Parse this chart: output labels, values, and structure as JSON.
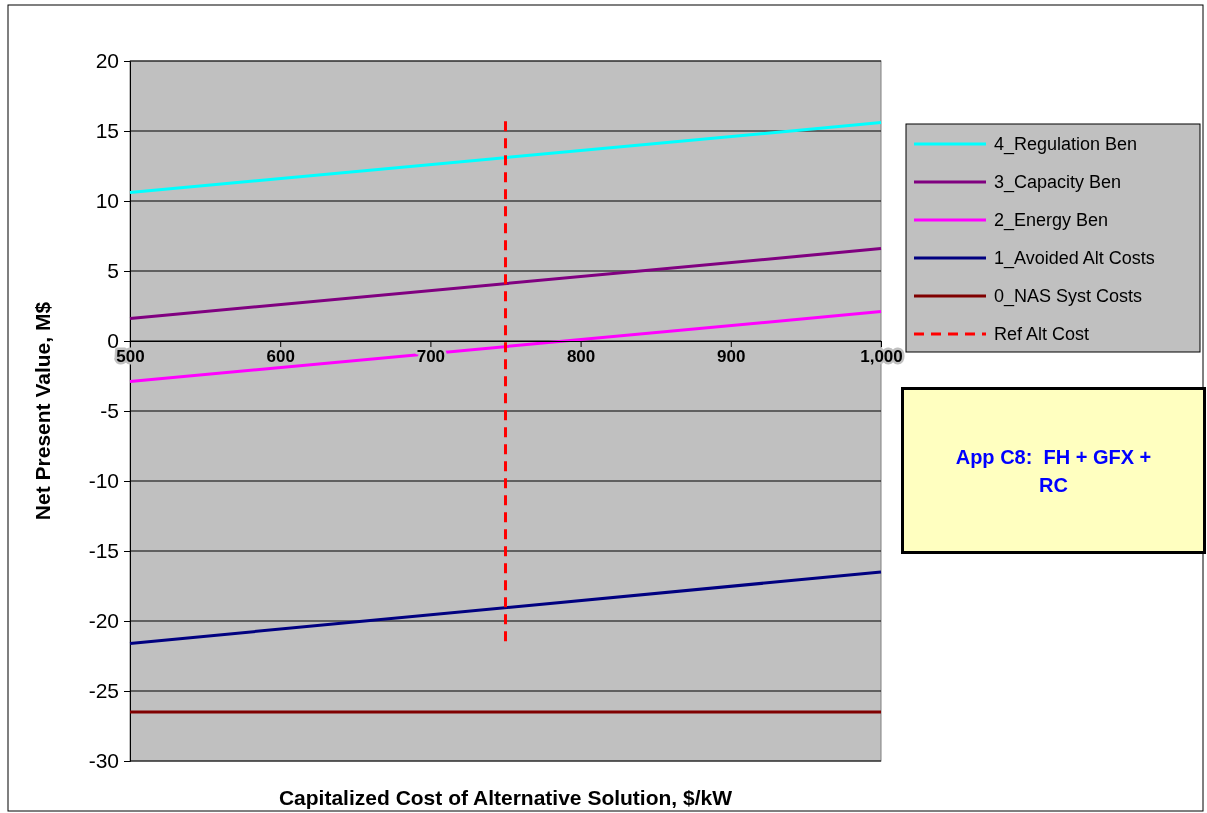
{
  "chart_data": {
    "type": "line",
    "xlabel": "Capitalized Cost of Alternative Solution, $/kW",
    "ylabel": "Net Present Value, M$",
    "x": [
      500,
      1000
    ],
    "series": [
      {
        "name": "4_Regulation Ben",
        "color": "#00ffff",
        "values": [
          10.6,
          15.6
        ]
      },
      {
        "name": "3_Capacity Ben",
        "color": "#800080",
        "values": [
          1.6,
          6.6
        ]
      },
      {
        "name": "2_Energy Ben",
        "color": "#ff00ff",
        "values": [
          -2.9,
          2.1
        ]
      },
      {
        "name": "1_Avoided Alt Costs",
        "color": "#000080",
        "values": [
          -21.6,
          -16.5
        ]
      },
      {
        "name": "0_NAS Syst Costs",
        "color": "#800000",
        "values": [
          -26.5,
          -26.5
        ]
      },
      {
        "name": "Ref Alt Cost",
        "color": "#ff0000",
        "x": [
          750,
          750
        ],
        "values": [
          15.7,
          -21.6
        ],
        "line_style": "dashed"
      }
    ],
    "xlim": [
      500,
      1000
    ],
    "xticks": [
      500,
      600,
      700,
      800,
      900,
      {
        "value": 1000,
        "label": "1,000"
      }
    ],
    "ylim": [
      -30,
      20
    ],
    "yticks": [
      -30,
      -25,
      -20,
      -15,
      -10,
      -5,
      0,
      5,
      10,
      15,
      20
    ],
    "grid": "y",
    "legend": "right",
    "marker": "none",
    "line_style": "solid",
    "annotations": [
      "App C8:  FH + GFX + RC"
    ]
  }
}
